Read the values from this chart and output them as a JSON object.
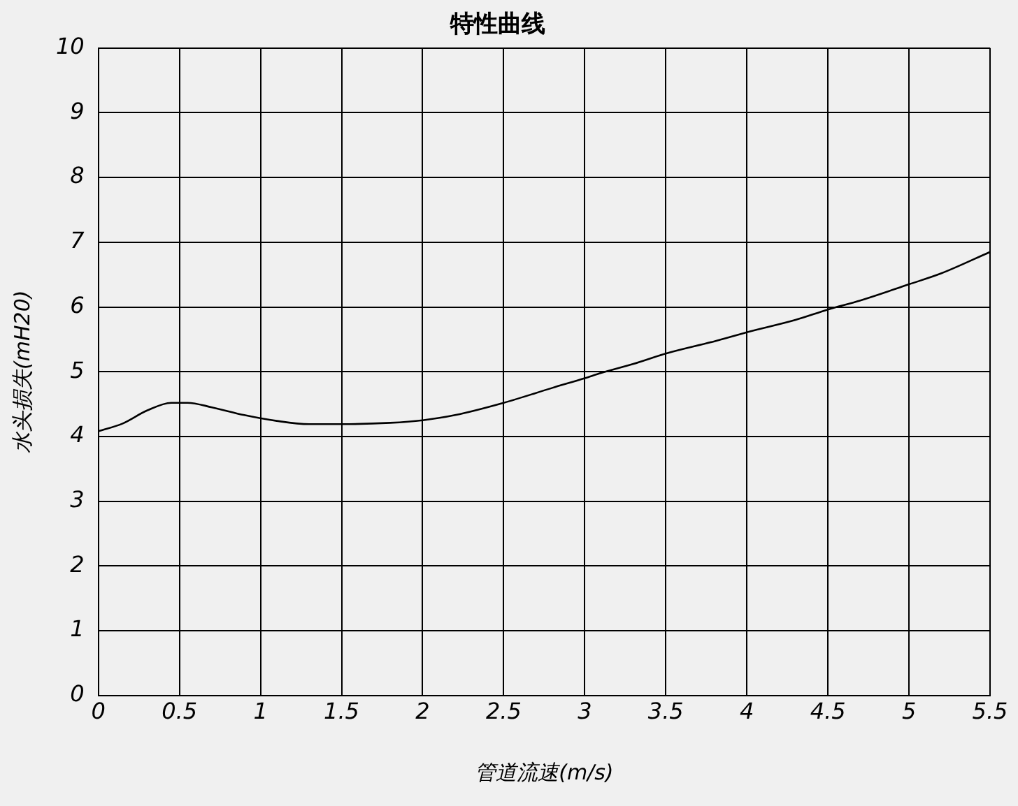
{
  "chart_data": {
    "type": "line",
    "title": "特性曲线",
    "xlabel": "管道流速(m/s)",
    "ylabel": "水头损失(mH20)",
    "x": [
      0,
      0.15,
      0.3,
      0.45,
      0.55,
      0.7,
      0.9,
      1.1,
      1.3,
      1.5,
      1.8,
      2,
      2.2,
      2.5,
      2.8,
      3,
      3.1,
      3.3,
      3.5,
      3.8,
      4,
      4.3,
      4.5,
      4.7,
      5,
      5.2,
      5.5
    ],
    "series": [
      {
        "color": "#000000",
        "values": [
          4.08,
          4.2,
          4.4,
          4.52,
          4.52,
          4.45,
          4.33,
          4.24,
          4.19,
          4.19,
          4.21,
          4.25,
          4.33,
          4.52,
          4.75,
          4.9,
          4.98,
          5.12,
          5.28,
          5.47,
          5.61,
          5.8,
          5.96,
          6.1,
          6.35,
          6.52,
          6.85
        ]
      }
    ],
    "xlim": [
      0,
      5.5
    ],
    "xticks": [
      0,
      0.5,
      1,
      1.5,
      2,
      2.5,
      3,
      3.5,
      4,
      4.5,
      5,
      5.5
    ],
    "ylim": [
      0,
      10
    ],
    "yticks": [
      0,
      1,
      2,
      3,
      4,
      5,
      6,
      7,
      8,
      9,
      10
    ],
    "grid": true,
    "legend": false,
    "marker": "none",
    "line_style": "solid"
  }
}
